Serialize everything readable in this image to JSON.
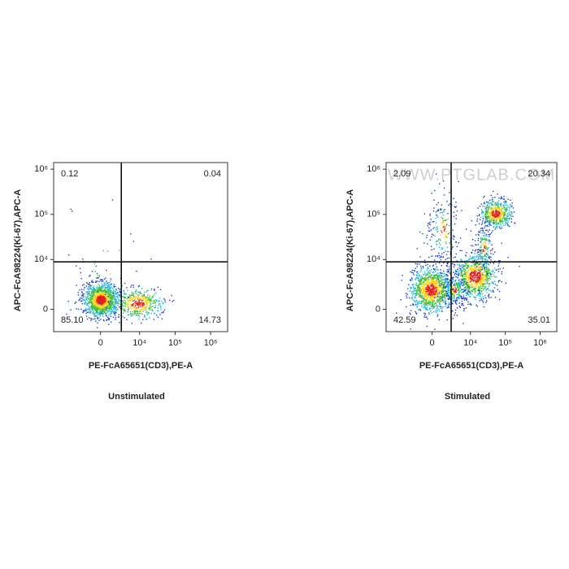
{
  "chart_data": [
    {
      "type": "flow-density",
      "caption": "Unstimulated",
      "x_label": "PE-FcA65651(CD3),PE-A",
      "y_label": "APC-FcA98224(Ki-67),APC-A",
      "xlim": [
        -12000,
        3000000
      ],
      "ylim": [
        -4500,
        1400000
      ],
      "xticks": [
        0,
        {
          "value": 10000,
          "label": "10⁴"
        },
        {
          "value": 100000,
          "label": "10⁵"
        },
        {
          "value": 1000000,
          "label": "10⁶"
        }
      ],
      "yticks": [
        0,
        {
          "value": 10000,
          "label": "10⁴"
        },
        {
          "value": 100000,
          "label": "10⁵"
        },
        {
          "value": 1000000,
          "label": "10⁶"
        }
      ],
      "quadrants": [
        0.12,
        0.04,
        85.1,
        14.73
      ],
      "quadrant_labels": [
        "0.12",
        "0.04",
        "85.10",
        "14.73"
      ]
    },
    {
      "type": "flow-density",
      "caption": "Stimulated",
      "watermark": "WWW.PTGLAB.COM",
      "x_label": "PE-FcA65651(CD3),PE-A",
      "y_label": "APC-FcA98224(Ki-67),APC-A",
      "xlim": [
        -12000,
        3000000
      ],
      "ylim": [
        -4500,
        1400000
      ],
      "xticks": [
        0,
        {
          "value": 10000,
          "label": "10⁴"
        },
        {
          "value": 100000,
          "label": "10⁵"
        },
        {
          "value": 1000000,
          "label": "10⁶"
        }
      ],
      "yticks": [
        0,
        {
          "value": 10000,
          "label": "10⁴"
        },
        {
          "value": 100000,
          "label": "10⁵"
        },
        {
          "value": 1000000,
          "label": "10⁶"
        }
      ],
      "quadrants": [
        2.09,
        20.34,
        42.59,
        35.01
      ],
      "quadrant_labels": [
        "2.09",
        "20.34",
        "42.59",
        "35.01"
      ]
    }
  ]
}
